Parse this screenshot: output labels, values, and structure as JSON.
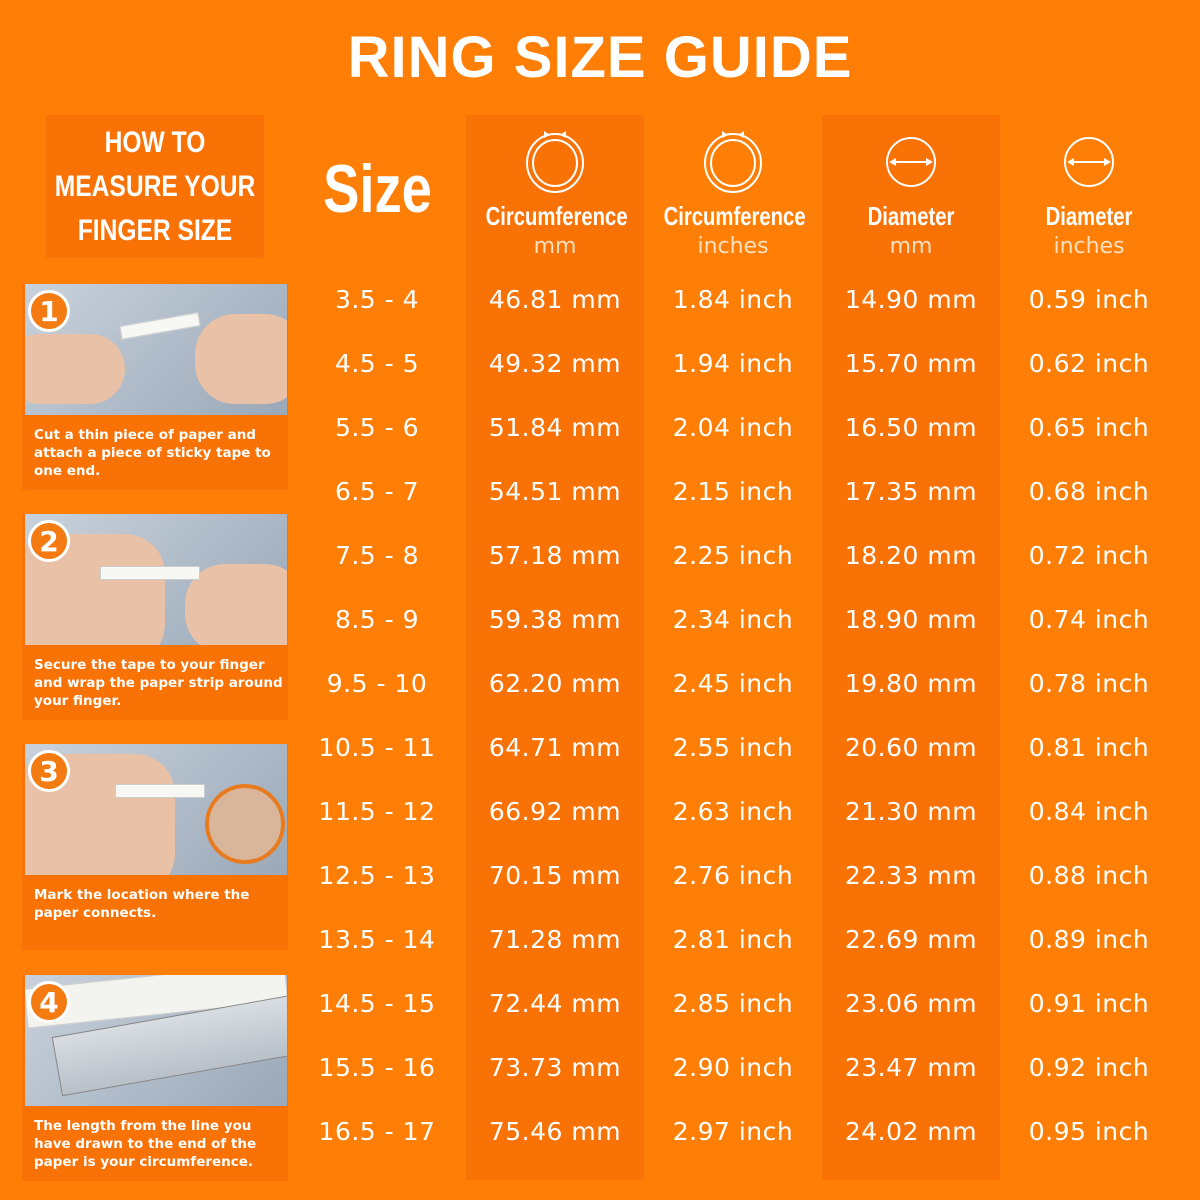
{
  "title": "RING SIZE GUIDE",
  "howto": {
    "title": "HOW TO MEASURE YOUR FINGER SIZE",
    "steps": [
      {
        "number": "1",
        "caption": "Cut a thin piece of paper and attach a piece of sticky tape to one end."
      },
      {
        "number": "2",
        "caption": "Secure the tape to your finger and wrap the paper strip around your finger."
      },
      {
        "number": "3",
        "caption": "Mark the location where the paper connects."
      },
      {
        "number": "4",
        "caption": "The length from the line you have drawn to the end of the paper is your circumference."
      }
    ]
  },
  "table": {
    "size_header": "Size",
    "columns": [
      {
        "title": "Circumference",
        "unit": "mm",
        "icon": "ring-circumference-icon"
      },
      {
        "title": "Circumference",
        "unit": "inches",
        "icon": "ring-circumference-icon"
      },
      {
        "title": "Diameter",
        "unit": "mm",
        "icon": "ring-diameter-icon"
      },
      {
        "title": "Diameter",
        "unit": "inches",
        "icon": "ring-diameter-icon"
      }
    ],
    "rows": [
      [
        "3.5 - 4",
        "46.81 mm",
        "1.84 inch",
        "14.90 mm",
        "0.59 inch"
      ],
      [
        "4.5 - 5",
        "49.32 mm",
        "1.94 inch",
        "15.70 mm",
        "0.62 inch"
      ],
      [
        "5.5 - 6",
        "51.84 mm",
        "2.04 inch",
        "16.50 mm",
        "0.65 inch"
      ],
      [
        "6.5 - 7",
        "54.51 mm",
        "2.15 inch",
        "17.35 mm",
        "0.68 inch"
      ],
      [
        "7.5 - 8",
        "57.18 mm",
        "2.25 inch",
        "18.20 mm",
        "0.72 inch"
      ],
      [
        "8.5 - 9",
        "59.38 mm",
        "2.34 inch",
        "18.90 mm",
        "0.74 inch"
      ],
      [
        "9.5 - 10",
        "62.20 mm",
        "2.45 inch",
        "19.80 mm",
        "0.78 inch"
      ],
      [
        "10.5 - 11",
        "64.71 mm",
        "2.55 inch",
        "20.60 mm",
        "0.81 inch"
      ],
      [
        "11.5 - 12",
        "66.92 mm",
        "2.63 inch",
        "21.30 mm",
        "0.84 inch"
      ],
      [
        "12.5 - 13",
        "70.15 mm",
        "2.76 inch",
        "22.33 mm",
        "0.88 inch"
      ],
      [
        "13.5 - 14",
        "71.28 mm",
        "2.81 inch",
        "22.69 mm",
        "0.89 inch"
      ],
      [
        "14.5 - 15",
        "72.44 mm",
        "2.85 inch",
        "23.06 mm",
        "0.91 inch"
      ],
      [
        "15.5 - 16",
        "73.73 mm",
        "2.90 inch",
        "23.47 mm",
        "0.92 inch"
      ],
      [
        "16.5 - 17",
        "75.46 mm",
        "2.97 inch",
        "24.02 mm",
        "0.95 inch"
      ]
    ]
  },
  "colors": {
    "background": "#ff7f06",
    "panel": "#f97206",
    "text": "#ffffff"
  }
}
